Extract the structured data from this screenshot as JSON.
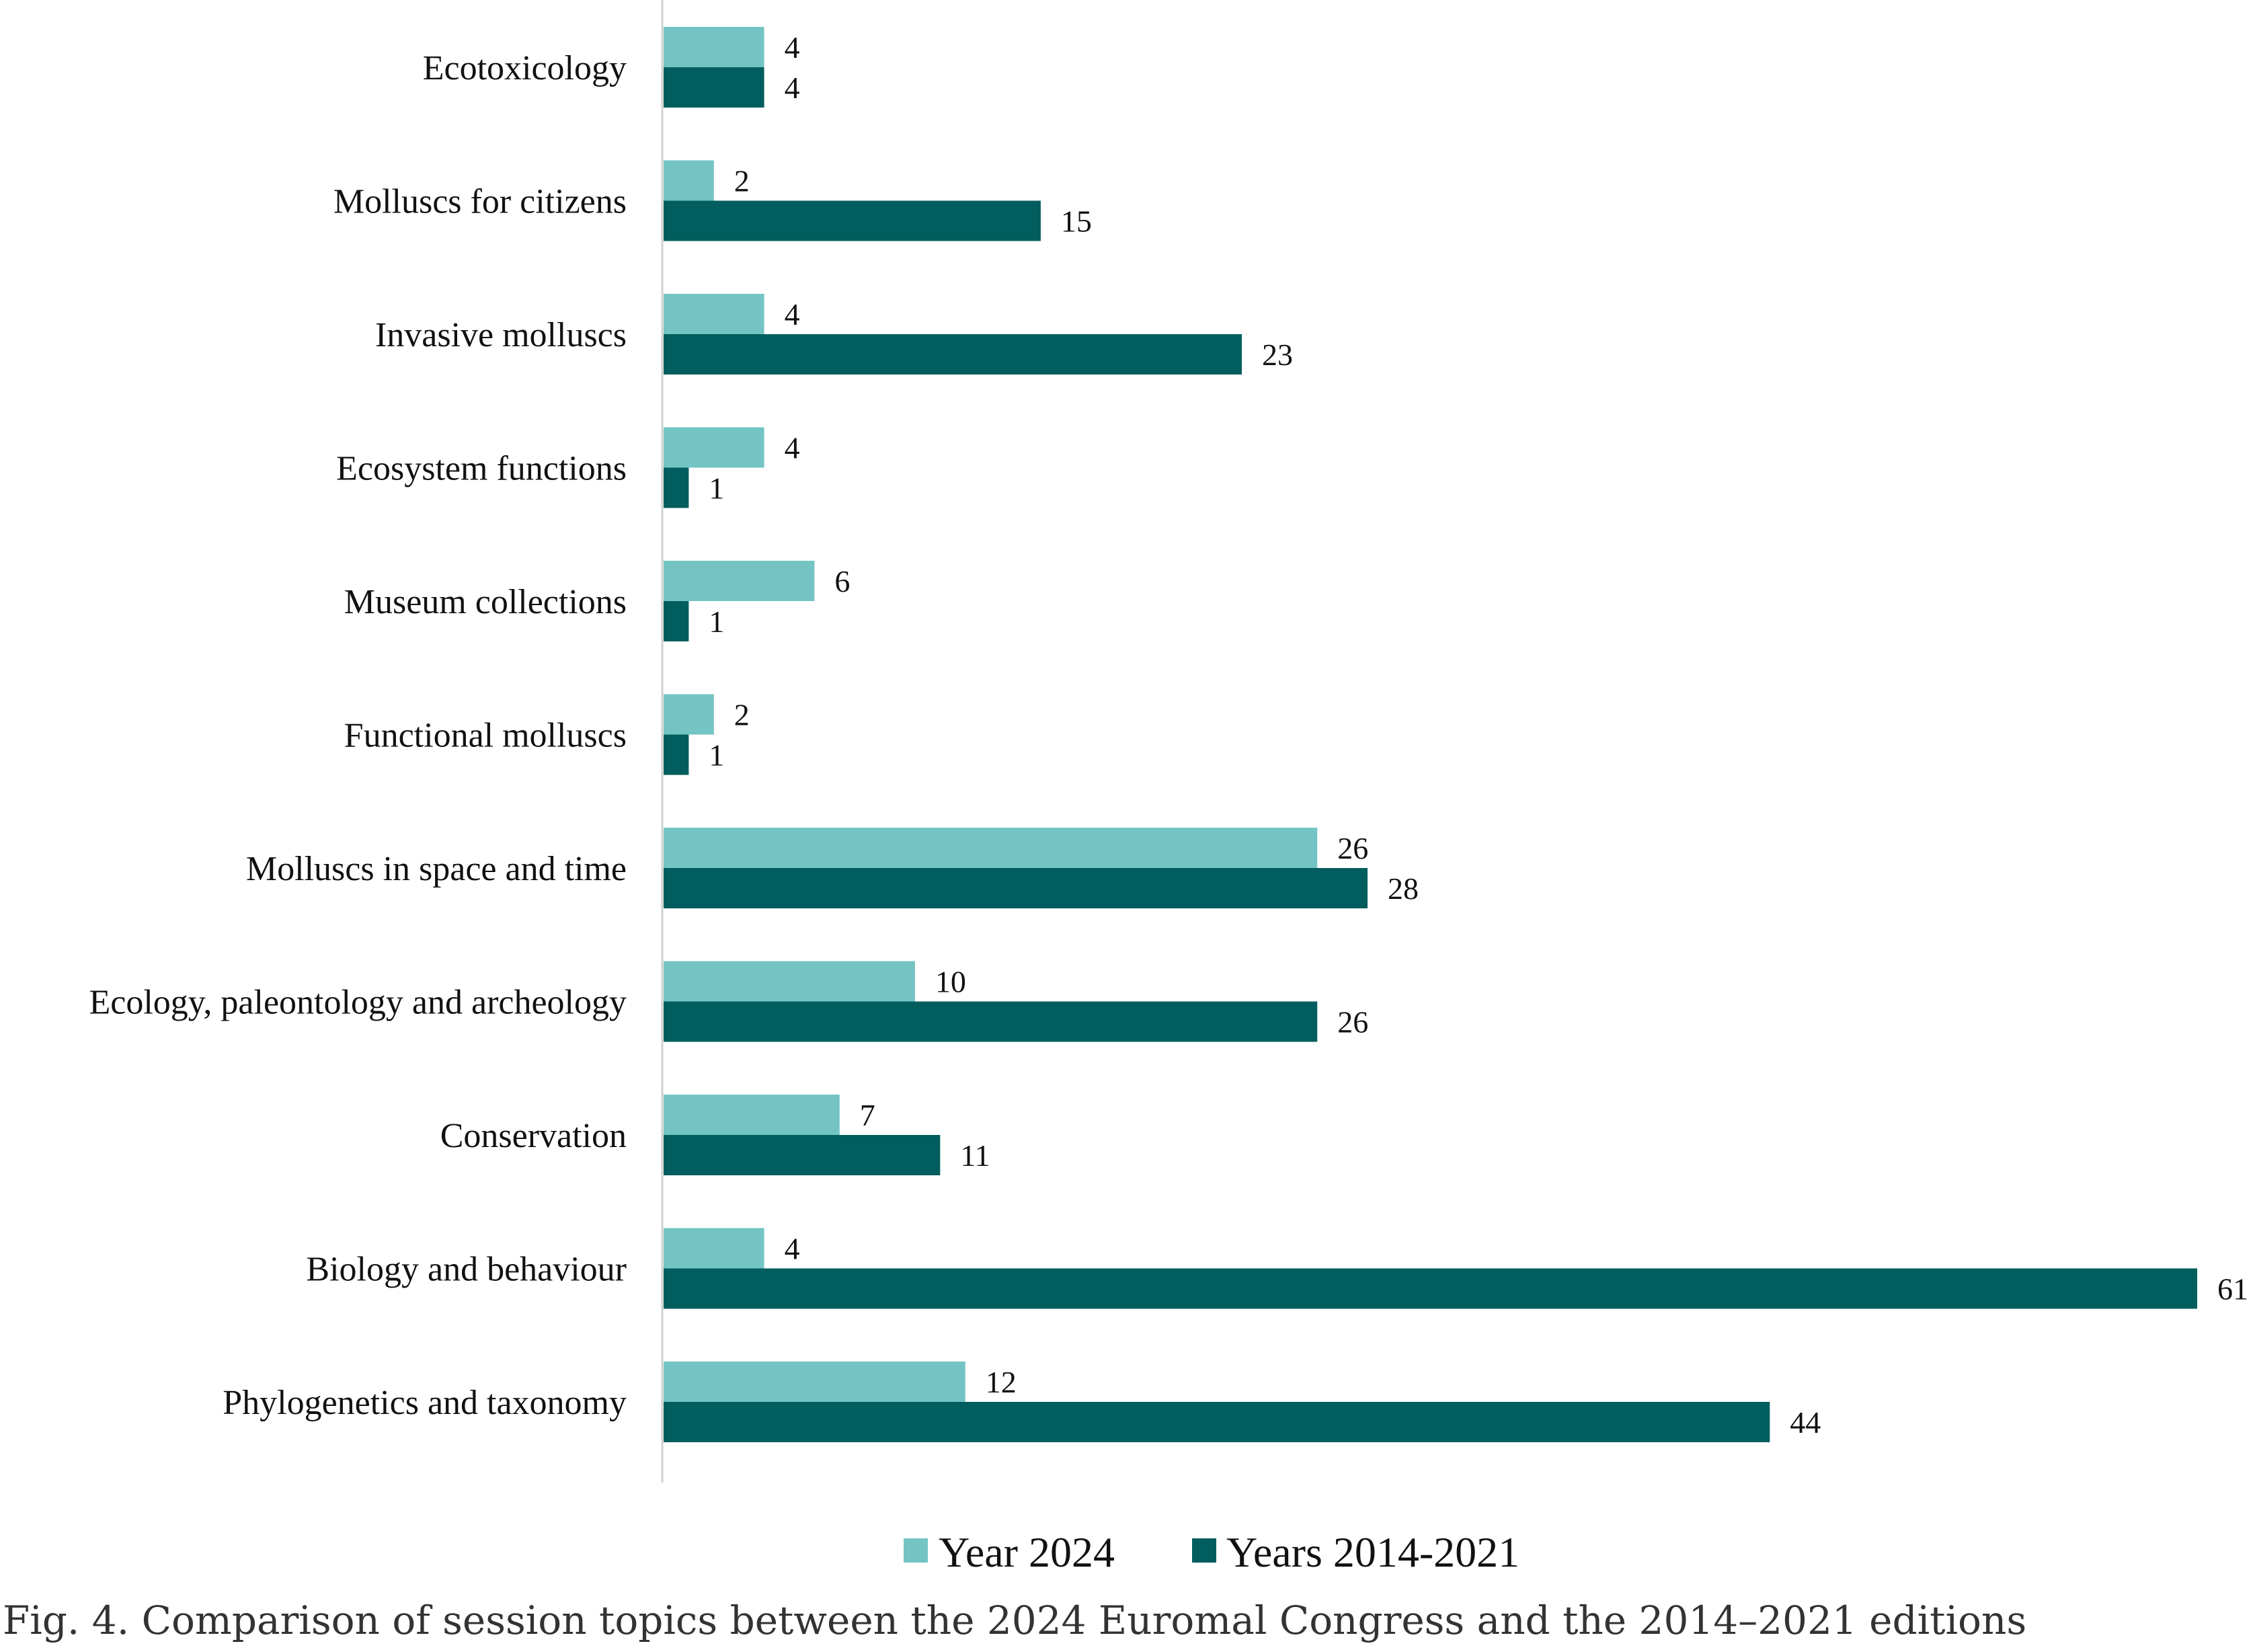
{
  "chart_data": {
    "type": "bar",
    "orientation": "horizontal",
    "categories": [
      "Ecotoxicology",
      "Molluscs for citizens",
      "Invasive molluscs",
      "Ecosystem functions",
      "Museum collections",
      "Functional molluscs",
      "Molluscs in space and time",
      "Ecology, paleontology and archeology",
      "Conservation",
      "Biology and behaviour",
      "Phylogenetics and taxonomy"
    ],
    "series": [
      {
        "name": "Year 2024",
        "color": "#74c4c4",
        "values": [
          4,
          2,
          4,
          4,
          6,
          2,
          26,
          10,
          7,
          4,
          12
        ]
      },
      {
        "name": "Years 2014-2021",
        "color": "#025e5e",
        "values": [
          4,
          15,
          23,
          1,
          1,
          1,
          28,
          26,
          11,
          61,
          44
        ]
      }
    ],
    "xlim": [
      0,
      61
    ],
    "data_labels": true,
    "grid": false,
    "legend": "bottom-center"
  },
  "caption": "Fig. 4. Comparison of session topics between the 2024 Euromal Congress and the 2014–2021 editions"
}
